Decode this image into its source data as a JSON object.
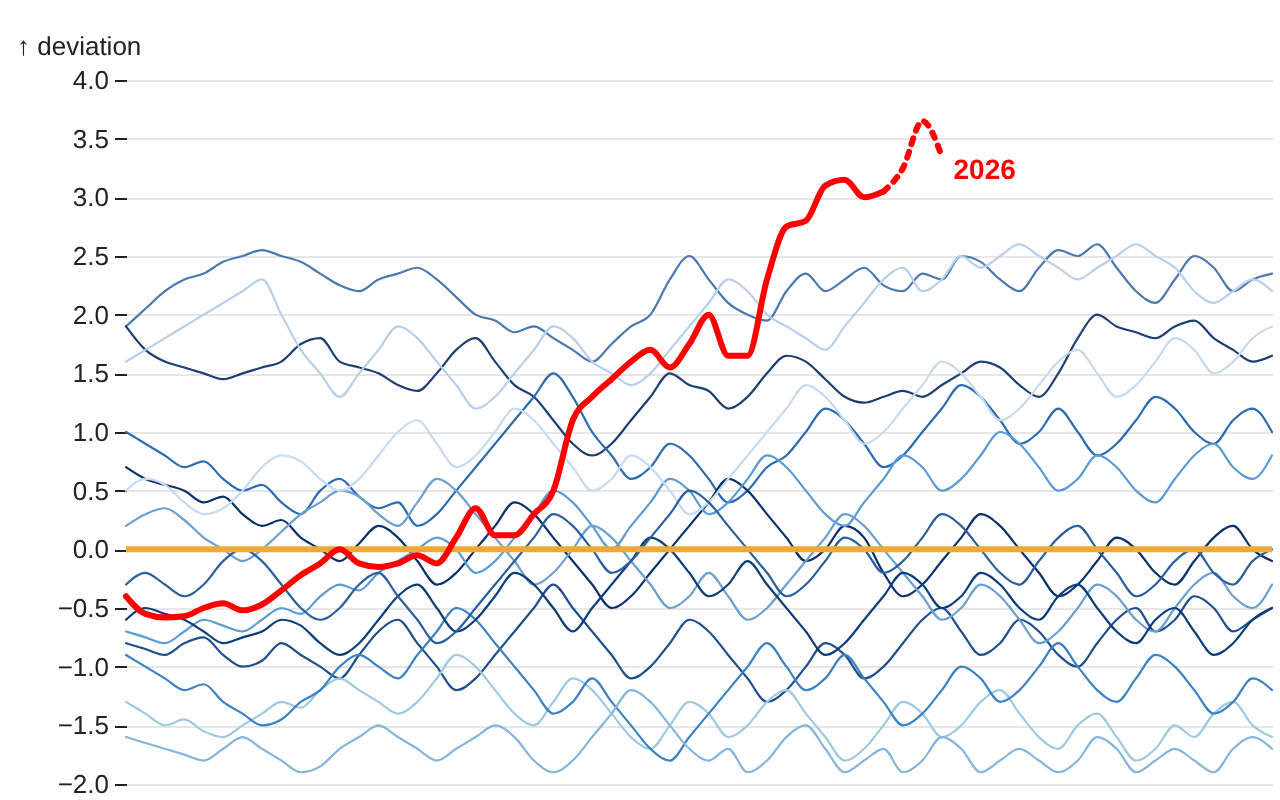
{
  "chart_data": {
    "type": "line",
    "ylabel": "↑ deviation",
    "grid": "y",
    "categories": [
      null,
      null,
      null,
      null,
      null,
      null,
      null,
      null,
      null,
      null,
      null,
      null,
      null,
      null,
      null,
      null,
      null,
      null,
      null,
      null,
      null,
      null,
      null,
      null,
      null,
      null,
      null,
      null,
      null,
      null,
      null,
      null,
      null,
      null,
      null,
      null,
      null,
      null,
      null,
      null,
      null,
      null,
      null,
      null,
      null,
      null,
      null,
      null,
      null,
      null,
      null,
      null,
      null,
      null,
      null,
      null,
      null,
      null,
      null,
      null
    ],
    "ylim": [
      -2.0,
      4.0
    ],
    "yticks": [
      {
        "value": -2,
        "label": "−2.0"
      },
      {
        "value": -1.5,
        "label": "−1.5"
      },
      {
        "value": -1,
        "label": "−1.0"
      },
      {
        "value": -0.5,
        "label": "−0.5"
      },
      {
        "value": 0,
        "label": "0.0"
      },
      {
        "value": 0.5,
        "label": "0.5"
      },
      {
        "value": 1,
        "label": "1.0"
      },
      {
        "value": 1.5,
        "label": "1.5"
      },
      {
        "value": 2,
        "label": "2.0"
      },
      {
        "value": 2.5,
        "label": "2.5"
      },
      {
        "value": 3,
        "label": "3.0"
      },
      {
        "value": 3.5,
        "label": "3.5"
      },
      {
        "value": 4,
        "label": "4.0"
      }
    ],
    "ref_lines": [
      {
        "axis": "y",
        "value": 0,
        "color": "#f0a830"
      }
    ],
    "series": [
      {
        "color": "#4a78b0",
        "values": [
          1.9,
          2.05,
          2.2,
          2.3,
          2.35,
          2.45,
          2.5,
          2.55,
          2.5,
          2.45,
          2.35,
          2.25,
          2.2,
          2.3,
          2.35,
          2.4,
          2.3,
          2.15,
          2.0,
          1.95,
          1.85,
          1.9,
          1.8,
          1.7,
          1.6,
          1.75,
          1.9,
          2.0,
          2.3,
          2.5,
          2.3,
          2.1,
          2.0,
          1.95,
          2.2,
          2.35,
          2.2,
          2.3,
          2.4,
          2.25,
          2.2,
          2.35,
          2.3,
          2.5,
          2.45,
          2.3,
          2.2,
          2.4,
          2.55,
          2.5,
          2.6,
          2.4,
          2.2,
          2.1,
          2.3,
          2.5,
          2.4,
          2.2,
          2.3,
          2.35
        ]
      },
      {
        "color": "#1c3f72",
        "values": [
          1.9,
          1.7,
          1.6,
          1.55,
          1.5,
          1.45,
          1.5,
          1.55,
          1.6,
          1.75,
          1.8,
          1.6,
          1.55,
          1.5,
          1.4,
          1.35,
          1.5,
          1.7,
          1.8,
          1.6,
          1.4,
          1.3,
          1.1,
          0.9,
          0.8,
          0.9,
          1.1,
          1.3,
          1.5,
          1.4,
          1.35,
          1.2,
          1.3,
          1.5,
          1.65,
          1.6,
          1.45,
          1.3,
          1.25,
          1.3,
          1.35,
          1.3,
          1.4,
          1.5,
          1.6,
          1.55,
          1.4,
          1.3,
          1.5,
          1.8,
          2.0,
          1.9,
          1.85,
          1.8,
          1.9,
          1.95,
          1.8,
          1.7,
          1.6,
          1.65
        ]
      },
      {
        "color": "#b7cfe8",
        "values": [
          1.6,
          1.7,
          1.8,
          1.9,
          2.0,
          2.1,
          2.2,
          2.3,
          2.0,
          1.7,
          1.5,
          1.3,
          1.5,
          1.7,
          1.9,
          1.8,
          1.6,
          1.4,
          1.2,
          1.3,
          1.5,
          1.7,
          1.9,
          1.8,
          1.6,
          1.5,
          1.4,
          1.5,
          1.7,
          1.9,
          2.1,
          2.3,
          2.2,
          2.0,
          1.9,
          1.8,
          1.7,
          1.9,
          2.1,
          2.3,
          2.4,
          2.2,
          2.3,
          2.5,
          2.4,
          2.5,
          2.6,
          2.5,
          2.4,
          2.3,
          2.4,
          2.5,
          2.6,
          2.5,
          2.4,
          2.2,
          2.1,
          2.2,
          2.3,
          2.2
        ]
      },
      {
        "color": "#2b6cb0",
        "values": [
          1.0,
          0.9,
          0.8,
          0.7,
          0.75,
          0.6,
          0.5,
          0.55,
          0.4,
          0.3,
          0.5,
          0.6,
          0.45,
          0.35,
          0.4,
          0.2,
          0.3,
          0.5,
          0.7,
          0.9,
          1.1,
          1.3,
          1.5,
          1.3,
          1.0,
          0.8,
          0.6,
          0.7,
          0.9,
          0.8,
          0.6,
          0.4,
          0.5,
          0.7,
          0.8,
          1.0,
          1.2,
          1.1,
          0.9,
          0.7,
          0.8,
          1.0,
          1.2,
          1.4,
          1.3,
          1.1,
          0.9,
          1.0,
          1.2,
          1.0,
          0.8,
          0.9,
          1.1,
          1.3,
          1.2,
          1.0,
          0.9,
          1.1,
          1.2,
          1.0
        ]
      },
      {
        "color": "#08306b",
        "values": [
          0.7,
          0.6,
          0.55,
          0.5,
          0.4,
          0.45,
          0.3,
          0.2,
          0.25,
          0.1,
          0.0,
          -0.1,
          0.05,
          0.2,
          0.1,
          -0.1,
          -0.3,
          -0.2,
          0.0,
          0.2,
          0.4,
          0.3,
          0.1,
          -0.1,
          -0.3,
          -0.5,
          -0.4,
          -0.2,
          0.0,
          0.2,
          0.4,
          0.6,
          0.5,
          0.3,
          0.1,
          -0.1,
          0.0,
          0.2,
          0.1,
          -0.2,
          -0.4,
          -0.3,
          -0.1,
          0.1,
          0.3,
          0.2,
          0.0,
          -0.2,
          -0.4,
          -0.3,
          -0.1,
          0.1,
          0.0,
          -0.2,
          -0.3,
          -0.1,
          0.1,
          0.2,
          0.0,
          -0.1
        ]
      },
      {
        "color": "#5b9bd5",
        "values": [
          -0.7,
          -0.75,
          -0.8,
          -0.7,
          -0.6,
          -0.65,
          -0.7,
          -0.6,
          -0.5,
          -0.55,
          -0.4,
          -0.3,
          -0.35,
          -0.2,
          -0.1,
          0.0,
          0.1,
          0.0,
          -0.2,
          -0.1,
          0.1,
          0.3,
          0.5,
          0.4,
          0.2,
          0.0,
          0.2,
          0.4,
          0.6,
          0.5,
          0.3,
          0.4,
          0.6,
          0.8,
          0.7,
          0.5,
          0.3,
          0.2,
          0.4,
          0.6,
          0.8,
          0.7,
          0.5,
          0.6,
          0.8,
          1.0,
          0.9,
          0.7,
          0.5,
          0.6,
          0.8,
          0.7,
          0.5,
          0.4,
          0.6,
          0.8,
          0.9,
          0.7,
          0.6,
          0.8
        ]
      },
      {
        "color": "#1f4e8c",
        "values": [
          -0.8,
          -0.85,
          -0.9,
          -0.8,
          -0.75,
          -0.9,
          -1.0,
          -0.95,
          -0.8,
          -0.9,
          -1.0,
          -1.1,
          -0.9,
          -0.7,
          -0.6,
          -0.8,
          -1.0,
          -1.2,
          -1.1,
          -0.9,
          -0.7,
          -0.5,
          -0.3,
          -0.5,
          -0.7,
          -0.9,
          -1.1,
          -1.0,
          -0.8,
          -0.6,
          -0.7,
          -0.9,
          -1.1,
          -1.3,
          -1.2,
          -1.0,
          -0.8,
          -0.9,
          -1.1,
          -1.0,
          -0.8,
          -0.6,
          -0.5,
          -0.7,
          -0.9,
          -0.8,
          -0.6,
          -0.7,
          -0.9,
          -1.0,
          -0.8,
          -0.6,
          -0.5,
          -0.7,
          -0.6,
          -0.4,
          -0.5,
          -0.7,
          -0.6,
          -0.5
        ]
      },
      {
        "color": "#9ecae1",
        "values": [
          -1.3,
          -1.4,
          -1.5,
          -1.45,
          -1.55,
          -1.6,
          -1.5,
          -1.4,
          -1.3,
          -1.35,
          -1.2,
          -1.1,
          -1.2,
          -1.3,
          -1.4,
          -1.3,
          -1.1,
          -0.9,
          -1.0,
          -1.2,
          -1.4,
          -1.5,
          -1.3,
          -1.1,
          -1.2,
          -1.4,
          -1.6,
          -1.7,
          -1.5,
          -1.3,
          -1.4,
          -1.6,
          -1.5,
          -1.3,
          -1.2,
          -1.4,
          -1.6,
          -1.8,
          -1.7,
          -1.5,
          -1.3,
          -1.4,
          -1.6,
          -1.5,
          -1.3,
          -1.2,
          -1.4,
          -1.6,
          -1.7,
          -1.5,
          -1.4,
          -1.6,
          -1.8,
          -1.7,
          -1.5,
          -1.6,
          -1.4,
          -1.3,
          -1.5,
          -1.6
        ]
      },
      {
        "color": "#3b82c4",
        "values": [
          -0.9,
          -1.0,
          -1.1,
          -1.2,
          -1.15,
          -1.3,
          -1.4,
          -1.5,
          -1.45,
          -1.3,
          -1.2,
          -1.0,
          -0.9,
          -1.0,
          -1.1,
          -0.9,
          -0.7,
          -0.5,
          -0.6,
          -0.8,
          -1.0,
          -1.2,
          -1.4,
          -1.3,
          -1.1,
          -1.3,
          -1.5,
          -1.7,
          -1.8,
          -1.6,
          -1.4,
          -1.2,
          -1.0,
          -0.8,
          -1.0,
          -1.2,
          -1.1,
          -0.9,
          -1.1,
          -1.3,
          -1.5,
          -1.4,
          -1.2,
          -1.0,
          -1.1,
          -1.3,
          -1.2,
          -1.0,
          -0.8,
          -1.0,
          -1.2,
          -1.3,
          -1.1,
          -0.9,
          -1.0,
          -1.2,
          -1.4,
          -1.3,
          -1.1,
          -1.2
        ]
      },
      {
        "color": "#6a9fcf",
        "values": [
          0.2,
          0.3,
          0.35,
          0.25,
          0.1,
          0.0,
          -0.1,
          0.0,
          0.15,
          0.3,
          0.4,
          0.5,
          0.45,
          0.3,
          0.2,
          0.4,
          0.6,
          0.5,
          0.3,
          0.1,
          -0.1,
          -0.3,
          -0.2,
          0.0,
          0.2,
          0.1,
          -0.1,
          -0.3,
          -0.5,
          -0.4,
          -0.2,
          -0.4,
          -0.6,
          -0.5,
          -0.3,
          -0.1,
          0.1,
          0.3,
          0.2,
          0.0,
          -0.2,
          -0.4,
          -0.6,
          -0.5,
          -0.3,
          -0.4,
          -0.6,
          -0.8,
          -0.7,
          -0.5,
          -0.3,
          -0.4,
          -0.6,
          -0.7,
          -0.5,
          -0.3,
          -0.2,
          -0.4,
          -0.5,
          -0.3
        ]
      },
      {
        "color": "#0b3d7a",
        "values": [
          -0.6,
          -0.5,
          -0.55,
          -0.6,
          -0.7,
          -0.8,
          -0.75,
          -0.7,
          -0.6,
          -0.65,
          -0.8,
          -0.9,
          -0.8,
          -0.6,
          -0.4,
          -0.3,
          -0.5,
          -0.7,
          -0.6,
          -0.4,
          -0.2,
          -0.3,
          -0.5,
          -0.7,
          -0.5,
          -0.3,
          -0.1,
          0.1,
          0.0,
          -0.2,
          -0.4,
          -0.3,
          -0.1,
          -0.3,
          -0.5,
          -0.7,
          -0.9,
          -0.8,
          -0.6,
          -0.4,
          -0.2,
          -0.3,
          -0.5,
          -0.4,
          -0.2,
          -0.3,
          -0.5,
          -0.6,
          -0.4,
          -0.3,
          -0.5,
          -0.7,
          -0.8,
          -0.6,
          -0.5,
          -0.7,
          -0.9,
          -0.8,
          -0.6,
          -0.5
        ]
      },
      {
        "color": "#c6dbef",
        "values": [
          0.5,
          0.6,
          0.55,
          0.4,
          0.3,
          0.35,
          0.5,
          0.7,
          0.8,
          0.75,
          0.6,
          0.5,
          0.6,
          0.8,
          1.0,
          1.1,
          0.9,
          0.7,
          0.8,
          1.0,
          1.2,
          1.1,
          0.9,
          0.7,
          0.5,
          0.6,
          0.8,
          0.7,
          0.5,
          0.3,
          0.4,
          0.6,
          0.8,
          1.0,
          1.2,
          1.4,
          1.3,
          1.1,
          0.9,
          1.0,
          1.2,
          1.4,
          1.6,
          1.5,
          1.3,
          1.1,
          1.2,
          1.4,
          1.6,
          1.7,
          1.5,
          1.3,
          1.4,
          1.6,
          1.8,
          1.7,
          1.5,
          1.6,
          1.8,
          1.9
        ]
      },
      {
        "color": "#2a5f9e",
        "values": [
          -0.3,
          -0.2,
          -0.3,
          -0.4,
          -0.3,
          -0.1,
          0.0,
          -0.1,
          -0.3,
          -0.5,
          -0.6,
          -0.5,
          -0.3,
          -0.2,
          -0.4,
          -0.6,
          -0.8,
          -0.7,
          -0.5,
          -0.3,
          -0.1,
          0.1,
          0.3,
          0.2,
          0.0,
          -0.2,
          -0.1,
          0.1,
          0.3,
          0.5,
          0.4,
          0.2,
          0.0,
          -0.2,
          -0.4,
          -0.3,
          -0.1,
          0.1,
          0.0,
          -0.2,
          -0.1,
          0.1,
          0.3,
          0.2,
          0.0,
          -0.2,
          -0.3,
          -0.1,
          0.1,
          0.2,
          0.0,
          -0.2,
          -0.4,
          -0.3,
          -0.1,
          0.0,
          -0.2,
          -0.3,
          -0.1,
          0.0
        ]
      },
      {
        "color": "#85b4dc",
        "values": [
          -1.6,
          -1.65,
          -1.7,
          -1.75,
          -1.8,
          -1.7,
          -1.6,
          -1.7,
          -1.8,
          -1.9,
          -1.85,
          -1.7,
          -1.6,
          -1.5,
          -1.6,
          -1.7,
          -1.8,
          -1.7,
          -1.6,
          -1.5,
          -1.6,
          -1.8,
          -1.9,
          -1.8,
          -1.6,
          -1.4,
          -1.2,
          -1.3,
          -1.5,
          -1.7,
          -1.8,
          -1.7,
          -1.9,
          -1.8,
          -1.6,
          -1.5,
          -1.7,
          -1.9,
          -1.8,
          -1.7,
          -1.9,
          -1.8,
          -1.6,
          -1.7,
          -1.9,
          -1.8,
          -1.7,
          -1.8,
          -1.9,
          -1.8,
          -1.6,
          -1.7,
          -1.9,
          -1.8,
          -1.7,
          -1.8,
          -1.9,
          -1.7,
          -1.6,
          -1.7
        ]
      },
      {
        "color": "#ff0000",
        "line_style": "dashed",
        "values": [
          null,
          null,
          null,
          null,
          null,
          null,
          null,
          null,
          null,
          null,
          null,
          null,
          null,
          null,
          null,
          null,
          null,
          null,
          null,
          null,
          null,
          null,
          null,
          null,
          null,
          null,
          null,
          null,
          null,
          null,
          null,
          null,
          null,
          null,
          null,
          null,
          null,
          null,
          null,
          3.05,
          3.25,
          3.65,
          3.35,
          null,
          null,
          null,
          null,
          null,
          null,
          null,
          null,
          null,
          null,
          null,
          null,
          null,
          null,
          null,
          null,
          null
        ]
      },
      {
        "name": "2026",
        "color": "#ff0000",
        "line_style": "solid",
        "values": [
          -0.4,
          -0.55,
          -0.58,
          -0.57,
          -0.5,
          -0.46,
          -0.52,
          -0.47,
          -0.35,
          -0.22,
          -0.12,
          0.0,
          -0.12,
          -0.15,
          -0.12,
          -0.05,
          -0.12,
          0.1,
          0.35,
          0.12,
          0.12,
          0.3,
          0.5,
          1.1,
          1.3,
          1.45,
          1.6,
          1.7,
          1.55,
          1.75,
          2.0,
          1.65,
          1.65,
          2.3,
          2.75,
          2.8,
          3.1,
          3.15,
          3.0,
          3.05,
          null,
          null,
          null,
          null,
          null,
          null,
          null,
          null,
          null,
          null,
          null,
          null,
          null,
          null,
          null,
          null,
          null,
          null,
          null,
          null
        ]
      }
    ]
  }
}
